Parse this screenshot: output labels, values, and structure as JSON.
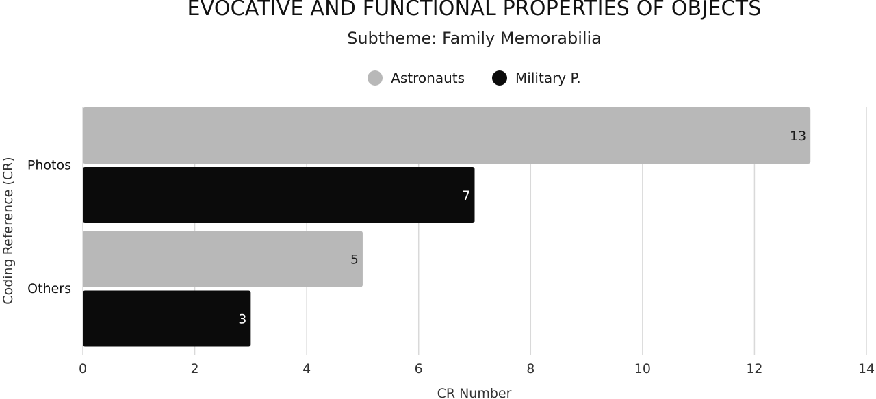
{
  "chart_data": {
    "type": "bar",
    "orientation": "horizontal",
    "title": "EVOCATIVE AND FUNCTIONAL PROPERTIES OF OBJECTS",
    "subtitle": "Subtheme: Family Memorabilia",
    "xlabel": "CR Number",
    "ylabel": "Coding Reference (CR)",
    "categories": [
      "Photos",
      "Others"
    ],
    "series": [
      {
        "name": "Astronauts",
        "color": "#b8b8b8",
        "label_color": "#1a1a1a",
        "values": [
          13,
          5
        ]
      },
      {
        "name": "Military P.",
        "color": "#0b0b0b",
        "label_color": "#ffffff",
        "values": [
          7,
          3
        ]
      }
    ],
    "xlim": [
      0,
      14
    ],
    "xticks": [
      0,
      2,
      4,
      6,
      8,
      10,
      12,
      14
    ],
    "grid": true,
    "legend_position": "top-center"
  }
}
